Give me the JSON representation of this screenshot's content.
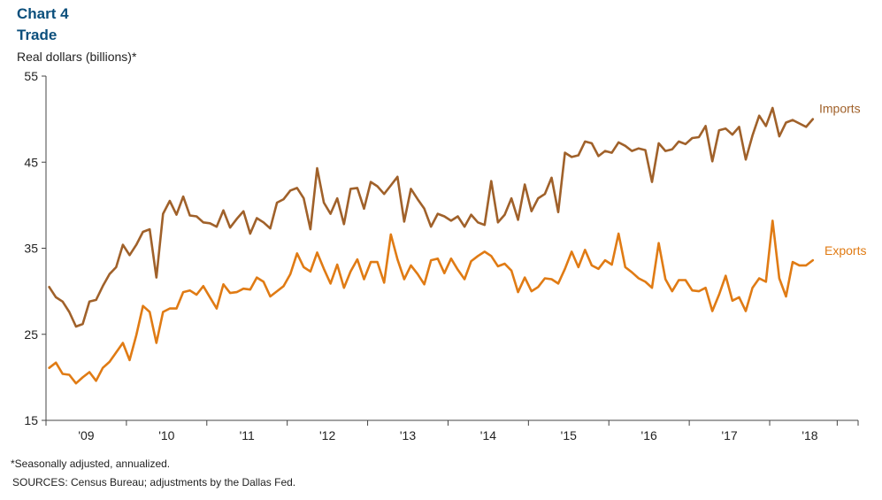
{
  "header": {
    "chart_number": "Chart 4",
    "title": "Trade",
    "unit_label": "Real dollars (billions)*"
  },
  "footer": {
    "note": "*Seasonally adjusted, annualized.",
    "sources": "SOURCES: Census Bureau; adjustments by the Dallas Fed."
  },
  "colors": {
    "imports": "#a0612a",
    "exports": "#e07b14",
    "axis": "#444444",
    "title": "#0b4f7c"
  },
  "chart_data": {
    "type": "line",
    "title": "Trade",
    "ylabel": "Real dollars (billions)*",
    "ylim": [
      15,
      55
    ],
    "yticks": [
      15,
      25,
      35,
      45,
      55
    ],
    "xlim": [
      2008.5,
      2018.6
    ],
    "xticks": [
      {
        "label": "'09",
        "x": 2009.0
      },
      {
        "label": "'10",
        "x": 2010.0
      },
      {
        "label": "'11",
        "x": 2011.0
      },
      {
        "label": "'12",
        "x": 2012.0
      },
      {
        "label": "'13",
        "x": 2013.0
      },
      {
        "label": "'14",
        "x": 2014.0
      },
      {
        "label": "'15",
        "x": 2015.0
      },
      {
        "label": "'16",
        "x": 2016.0
      },
      {
        "label": "'17",
        "x": 2017.0
      },
      {
        "label": "'18",
        "x": 2018.0
      }
    ],
    "x_start": 2008.54,
    "x_step": 0.0833,
    "series": [
      {
        "name": "Imports",
        "color": "#a0612a",
        "values": [
          30.5,
          29.3,
          28.8,
          27.6,
          25.9,
          26.2,
          28.8,
          29.0,
          30.6,
          32.0,
          32.8,
          35.4,
          34.2,
          35.4,
          36.9,
          37.2,
          31.6,
          39.0,
          40.5,
          38.9,
          41.0,
          38.8,
          38.7,
          38.0,
          37.9,
          37.5,
          39.4,
          37.4,
          38.4,
          39.3,
          36.7,
          38.5,
          38.0,
          37.3,
          40.3,
          40.7,
          41.7,
          42.0,
          40.8,
          37.2,
          44.3,
          40.3,
          39.0,
          40.8,
          37.8,
          41.9,
          42.0,
          39.6,
          42.7,
          42.2,
          41.3,
          42.3,
          43.3,
          38.1,
          41.9,
          40.7,
          39.6,
          37.5,
          39.0,
          38.7,
          38.2,
          38.7,
          37.5,
          38.9,
          38.0,
          37.7,
          42.8,
          38.0,
          38.9,
          40.8,
          38.3,
          42.4,
          39.3,
          40.8,
          41.3,
          43.2,
          39.2,
          46.1,
          45.6,
          45.8,
          47.4,
          47.2,
          45.7,
          46.3,
          46.1,
          47.3,
          46.9,
          46.3,
          46.6,
          46.4,
          42.7,
          47.2,
          46.3,
          46.5,
          47.4,
          47.1,
          47.8,
          47.9,
          49.2,
          45.1,
          48.7,
          48.9,
          48.2,
          49.1,
          45.3,
          48.1,
          50.4,
          49.2,
          51.3,
          48.0,
          49.6,
          49.9,
          49.5,
          49.1,
          50.0
        ]
      },
      {
        "name": "Exports",
        "color": "#e07b14",
        "values": [
          21.1,
          21.7,
          20.4,
          20.3,
          19.3,
          20.0,
          20.6,
          19.6,
          21.1,
          21.8,
          22.9,
          24.0,
          22.0,
          24.9,
          28.3,
          27.6,
          24.0,
          27.6,
          28.0,
          28.0,
          29.9,
          30.1,
          29.6,
          30.6,
          29.3,
          28.0,
          30.8,
          29.8,
          29.9,
          30.3,
          30.2,
          31.6,
          31.1,
          29.4,
          30.0,
          30.6,
          32.0,
          34.4,
          32.8,
          32.3,
          34.5,
          32.6,
          30.9,
          33.1,
          30.4,
          32.3,
          33.7,
          31.4,
          33.4,
          33.4,
          31.0,
          36.6,
          33.7,
          31.4,
          33.0,
          32.0,
          30.8,
          33.6,
          33.8,
          32.1,
          33.8,
          32.5,
          31.4,
          33.5,
          34.1,
          34.6,
          34.1,
          32.9,
          33.2,
          32.4,
          29.9,
          31.6,
          30.0,
          30.5,
          31.5,
          31.4,
          30.9,
          32.6,
          34.6,
          32.8,
          34.8,
          33.0,
          32.6,
          33.6,
          33.1,
          36.7,
          32.8,
          32.2,
          31.5,
          31.1,
          30.4,
          35.6,
          31.4,
          30.0,
          31.3,
          31.3,
          30.1,
          30.0,
          30.4,
          27.7,
          29.6,
          31.8,
          28.9,
          29.3,
          27.7,
          30.4,
          31.5,
          31.1,
          38.2,
          31.5,
          29.4,
          33.4,
          33.0,
          33.0,
          33.6
        ]
      }
    ],
    "series_labels": [
      {
        "name": "Imports",
        "text": "Imports"
      },
      {
        "name": "Exports",
        "text": "Exports"
      }
    ],
    "grid": false,
    "legend": "inline labels at right end of lines"
  }
}
